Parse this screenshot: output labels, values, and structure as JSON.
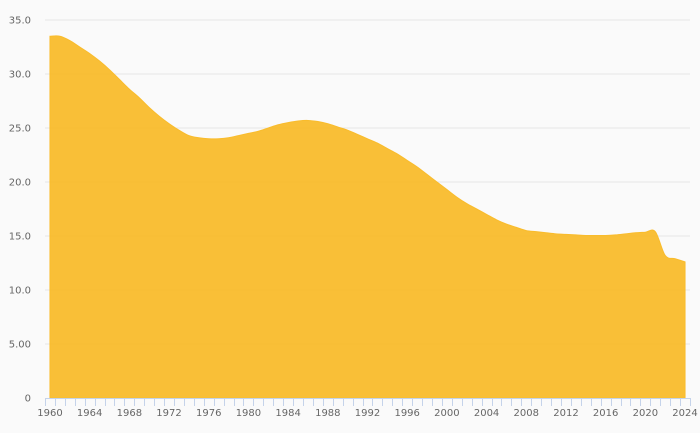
{
  "chart_data": {
    "type": "area",
    "title": "",
    "xlabel": "",
    "ylabel": "",
    "ylim": [
      0,
      35
    ],
    "grid": true,
    "legend": "none",
    "fill_color": "#f9bc2c",
    "y_ticks": [
      0,
      5,
      10,
      15,
      20,
      25,
      30,
      35
    ],
    "y_tick_labels": [
      "0",
      "5.00",
      "10.0",
      "15.0",
      "20.0",
      "25.0",
      "30.0",
      "35.0"
    ],
    "x_tick_labels": [
      "1960",
      "1964",
      "1968",
      "1972",
      "1976",
      "1980",
      "1984",
      "1988",
      "1992",
      "1996",
      "2000",
      "2004",
      "2008",
      "2012",
      "2016",
      "2020",
      "2024"
    ],
    "x": [
      1960,
      1961,
      1962,
      1963,
      1964,
      1965,
      1966,
      1967,
      1968,
      1969,
      1970,
      1971,
      1972,
      1973,
      1974,
      1975,
      1976,
      1977,
      1978,
      1979,
      1980,
      1981,
      1982,
      1983,
      1984,
      1985,
      1986,
      1987,
      1988,
      1989,
      1990,
      1991,
      1992,
      1993,
      1994,
      1995,
      1996,
      1997,
      1998,
      1999,
      2000,
      2001,
      2002,
      2003,
      2004,
      2005,
      2006,
      2007,
      2008,
      2009,
      2010,
      2011,
      2012,
      2013,
      2014,
      2015,
      2016,
      2017,
      2018,
      2019,
      2020,
      2021,
      2022,
      2023,
      2024
    ],
    "series": [
      {
        "name": "",
        "values": [
          33.5,
          33.5,
          33.1,
          32.5,
          31.9,
          31.2,
          30.4,
          29.5,
          28.6,
          27.8,
          26.9,
          26.1,
          25.4,
          24.8,
          24.3,
          24.1,
          24.0,
          24.0,
          24.1,
          24.3,
          24.5,
          24.7,
          25.0,
          25.3,
          25.5,
          25.65,
          25.7,
          25.6,
          25.4,
          25.1,
          24.8,
          24.4,
          24.0,
          23.6,
          23.1,
          22.6,
          22.0,
          21.4,
          20.7,
          20.0,
          19.3,
          18.6,
          18.0,
          17.5,
          17.0,
          16.5,
          16.1,
          15.8,
          15.5,
          15.4,
          15.3,
          15.2,
          15.15,
          15.1,
          15.05,
          15.05,
          15.05,
          15.1,
          15.2,
          15.3,
          15.35,
          15.4,
          13.2,
          12.9,
          12.6
        ]
      }
    ]
  }
}
